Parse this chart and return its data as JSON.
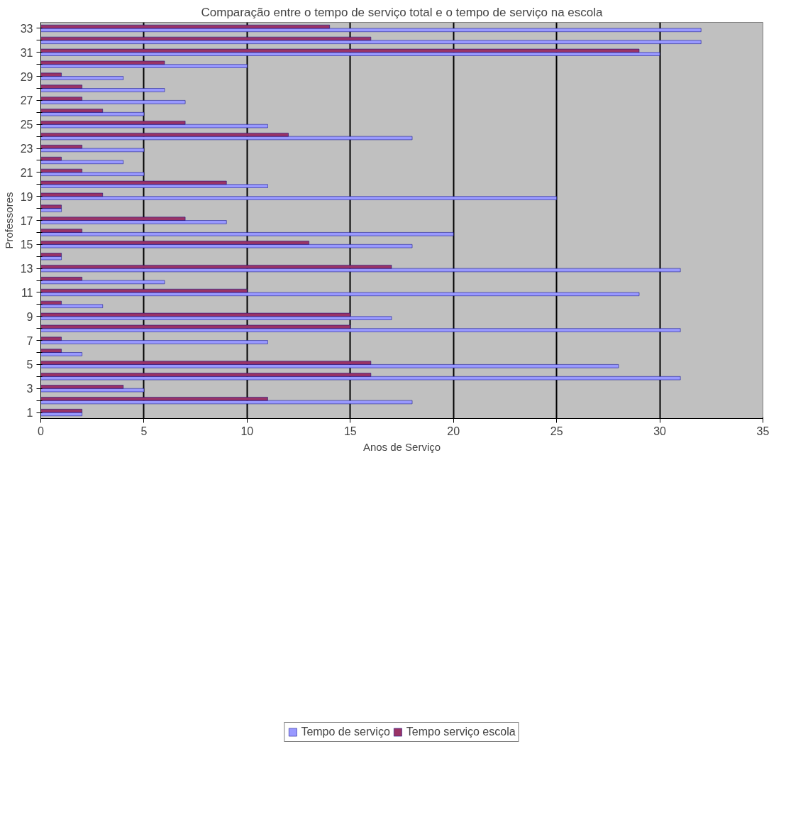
{
  "chart_data": {
    "type": "bar",
    "orientation": "horizontal",
    "title": "Comparação entre o tempo de serviço total e o tempo de serviço na escola",
    "xlabel": "Anos de Serviço",
    "ylabel": "Professores",
    "categories": [
      "33",
      null,
      "31",
      null,
      "29",
      null,
      "27",
      null,
      "25",
      null,
      "23",
      null,
      "21",
      null,
      "19",
      null,
      "17",
      null,
      "15",
      null,
      "13",
      null,
      "11",
      null,
      "9",
      null,
      "7",
      null,
      "5",
      null,
      "3",
      null,
      "1"
    ],
    "series": [
      {
        "name": "Tempo de serviço",
        "color": "#9999ff",
        "values": [
          32,
          32,
          30,
          10,
          4,
          6,
          7,
          5,
          11,
          18,
          5,
          4,
          5,
          11,
          25,
          1,
          9,
          20,
          18,
          1,
          31,
          6,
          29,
          3,
          17,
          31,
          11,
          2,
          28,
          31,
          5,
          18,
          2
        ]
      },
      {
        "name": "Tempo serviço escola",
        "color": "#993366",
        "values": [
          14,
          16,
          29,
          6,
          1,
          2,
          2,
          3,
          7,
          12,
          2,
          1,
          2,
          9,
          3,
          1,
          7,
          2,
          13,
          1,
          17,
          2,
          10,
          1,
          15,
          15,
          1,
          1,
          16,
          16,
          4,
          11,
          2
        ]
      }
    ],
    "xlim": [
      0,
      35
    ],
    "xticks": [
      0,
      5,
      10,
      15,
      20,
      25,
      30,
      35
    ],
    "grid": "x",
    "legend": "bottom"
  }
}
